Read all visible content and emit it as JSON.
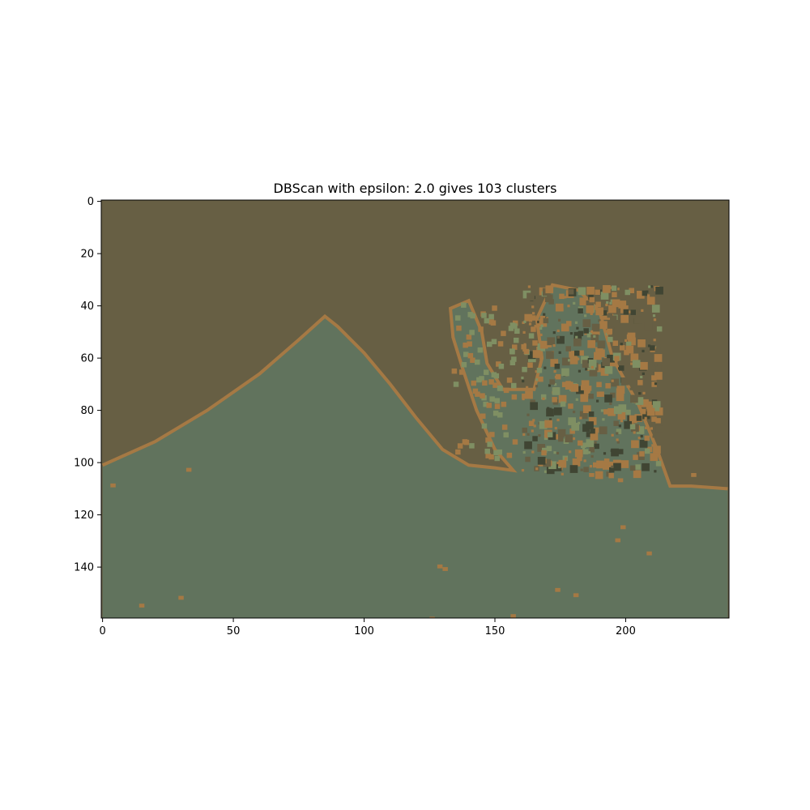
{
  "chart_data": {
    "type": "heatmap",
    "title": "DBScan with epsilon: 2.0 gives 103 clusters",
    "xlim": [
      -0.5,
      239.5
    ],
    "ylim": [
      159.5,
      -0.5
    ],
    "x_ticks": [
      "0",
      "50",
      "100",
      "150",
      "200"
    ],
    "x_tick_values": [
      0,
      50,
      100,
      150,
      200
    ],
    "y_ticks": [
      "0",
      "20",
      "40",
      "60",
      "80",
      "100",
      "120",
      "140"
    ],
    "y_tick_values": [
      0,
      20,
      40,
      60,
      80,
      100,
      120,
      140
    ],
    "grid": false,
    "legend": "none",
    "image_width": 240,
    "image_height": 160,
    "dominant_colors": {
      "sky": "#675f44",
      "ground": "#61735d",
      "edge": "#a57944",
      "dark_spot": "#404533",
      "light_green": "#7f8f63"
    }
  }
}
